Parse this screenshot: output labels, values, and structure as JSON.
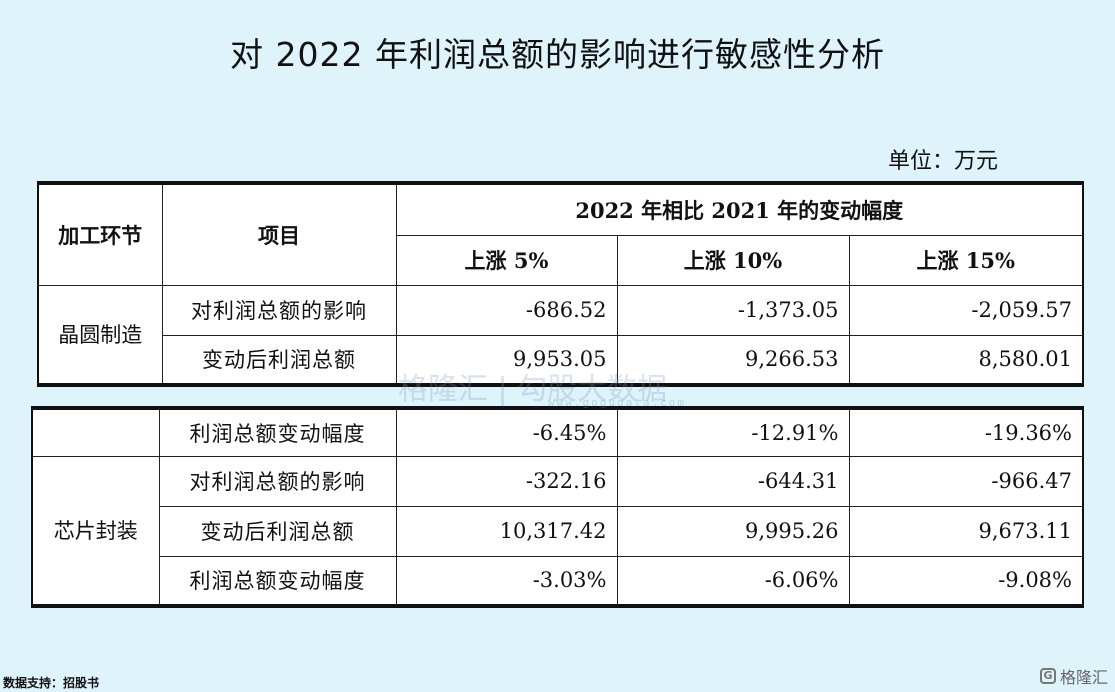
{
  "title": "对 2022 年利润总额的影响进行敏感性分析",
  "unit_label": "单位：万元",
  "table1": {
    "header": {
      "col_stage": "加工环节",
      "col_item": "项目",
      "change_group": "2022 年相比 2021 年的变动幅度",
      "rise_5": "上涨 5%",
      "rise_10": "上涨 10%",
      "rise_15": "上涨 15%"
    },
    "stage": "晶圆制造",
    "rows": [
      {
        "item": "对利润总额的影响",
        "v5": "-686.52",
        "v10": "-1,373.05",
        "v15": "-2,059.57"
      },
      {
        "item": "变动后利润总额",
        "v5": "9,953.05",
        "v10": "9,266.53",
        "v15": "8,580.01"
      }
    ]
  },
  "table2": {
    "row0": {
      "item": "利润总额变动幅度",
      "v5": "-6.45%",
      "v10": "-12.91%",
      "v15": "-19.36%"
    },
    "stage": "芯片封装",
    "rows": [
      {
        "item": "对利润总额的影响",
        "v5": "-322.16",
        "v10": "-644.31",
        "v15": "-966.47"
      },
      {
        "item": "变动后利润总额",
        "v5": "10,317.42",
        "v10": "9,995.26",
        "v15": "9,673.11"
      },
      {
        "item": "利润总额变动幅度",
        "v5": "-3.03%",
        "v10": "-6.06%",
        "v15": "-9.08%"
      }
    ]
  },
  "watermark": {
    "brand": "格隆汇 | 勾股大数据",
    "url": "www.gogudata.com",
    "corner": "格隆汇"
  },
  "footer": "数据支持：招股书"
}
